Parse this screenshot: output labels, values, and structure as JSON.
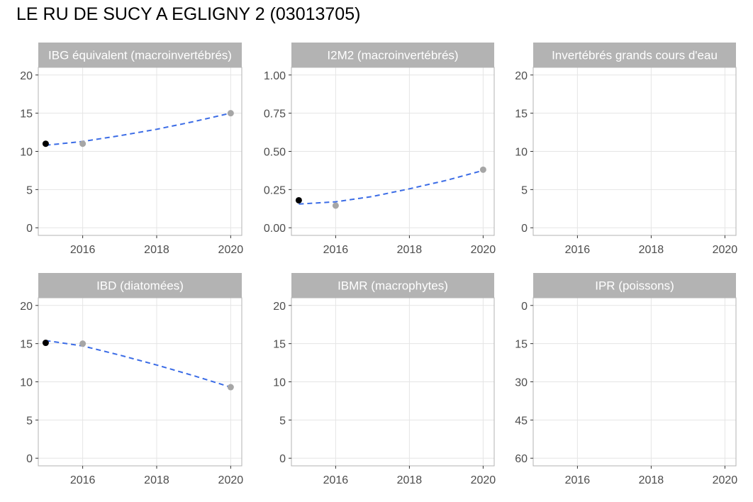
{
  "title": "LE RU DE SUCY A EGLIGNY 2 (03013705)",
  "style": {
    "strip_fill": "#b3b3b3",
    "grid": "#e5e5e5",
    "panel_border": "#b3b3b3",
    "trend": "#3b6ce6",
    "first_point": "#000000",
    "other_points": "#a6a6a6"
  },
  "chart_data": [
    {
      "type": "scatter",
      "title": "IBG équivalent (macroinvertébrés)",
      "x_ticks": [
        2016,
        2018,
        2020
      ],
      "y_ticks": [
        0,
        5,
        10,
        15,
        20
      ],
      "xlim": [
        2014.8,
        2020.3
      ],
      "ylim": [
        -1,
        21
      ],
      "reverse_y": false,
      "grid": true,
      "points": [
        {
          "x": 2015,
          "y": 11,
          "first": true
        },
        {
          "x": 2016,
          "y": 11,
          "first": false
        },
        {
          "x": 2020,
          "y": 15,
          "first": false
        }
      ],
      "trend": [
        {
          "x": 2015,
          "y": 10.8
        },
        {
          "x": 2016,
          "y": 11.3
        },
        {
          "x": 2017,
          "y": 12.05
        },
        {
          "x": 2018,
          "y": 12.9
        },
        {
          "x": 2019,
          "y": 13.9
        },
        {
          "x": 2020,
          "y": 15.0
        }
      ]
    },
    {
      "type": "scatter",
      "title": "I2M2 (macroinvertébrés)",
      "x_ticks": [
        2016,
        2018,
        2020
      ],
      "y_ticks": [
        "0.00",
        "0.25",
        "0.50",
        "0.75",
        "1.00"
      ],
      "xlim": [
        2014.8,
        2020.3
      ],
      "ylim": [
        -0.05,
        1.05
      ],
      "reverse_y": false,
      "grid": true,
      "points": [
        {
          "x": 2015,
          "y": 0.18,
          "first": true
        },
        {
          "x": 2016,
          "y": 0.145,
          "first": false
        },
        {
          "x": 2020,
          "y": 0.38,
          "first": false
        }
      ],
      "trend": [
        {
          "x": 2015,
          "y": 0.155
        },
        {
          "x": 2016,
          "y": 0.17
        },
        {
          "x": 2017,
          "y": 0.205
        },
        {
          "x": 2018,
          "y": 0.255
        },
        {
          "x": 2019,
          "y": 0.31
        },
        {
          "x": 2020,
          "y": 0.375
        }
      ]
    },
    {
      "type": "scatter",
      "title": "Invertébrés grands cours d'eau",
      "x_ticks": [
        2016,
        2018,
        2020
      ],
      "y_ticks": [
        0,
        5,
        10,
        15,
        20
      ],
      "xlim": [
        2014.8,
        2020.3
      ],
      "ylim": [
        -1,
        21
      ],
      "reverse_y": false,
      "grid": true,
      "points": [],
      "trend": []
    },
    {
      "type": "scatter",
      "title": "IBD (diatomées)",
      "x_ticks": [
        2016,
        2018,
        2020
      ],
      "y_ticks": [
        0,
        5,
        10,
        15,
        20
      ],
      "xlim": [
        2014.8,
        2020.3
      ],
      "ylim": [
        -1,
        21
      ],
      "reverse_y": false,
      "grid": true,
      "points": [
        {
          "x": 2015,
          "y": 15.1,
          "first": true
        },
        {
          "x": 2016,
          "y": 15.0,
          "first": false
        },
        {
          "x": 2020,
          "y": 9.3,
          "first": false
        }
      ],
      "trend": [
        {
          "x": 2015,
          "y": 15.4
        },
        {
          "x": 2016,
          "y": 14.7
        },
        {
          "x": 2017,
          "y": 13.5
        },
        {
          "x": 2018,
          "y": 12.2
        },
        {
          "x": 2019,
          "y": 10.8
        },
        {
          "x": 2020,
          "y": 9.3
        }
      ]
    },
    {
      "type": "scatter",
      "title": "IBMR (macrophytes)",
      "x_ticks": [
        2016,
        2018,
        2020
      ],
      "y_ticks": [
        0,
        5,
        10,
        15,
        20
      ],
      "xlim": [
        2014.8,
        2020.3
      ],
      "ylim": [
        -1,
        21
      ],
      "reverse_y": false,
      "grid": true,
      "points": [],
      "trend": []
    },
    {
      "type": "scatter",
      "title": "IPR (poissons)",
      "x_ticks": [
        2016,
        2018,
        2020
      ],
      "y_ticks": [
        0,
        15,
        30,
        45,
        60
      ],
      "xlim": [
        2014.8,
        2020.3
      ],
      "ylim": [
        -3,
        63
      ],
      "reverse_y": true,
      "grid": true,
      "points": [],
      "trend": []
    }
  ]
}
